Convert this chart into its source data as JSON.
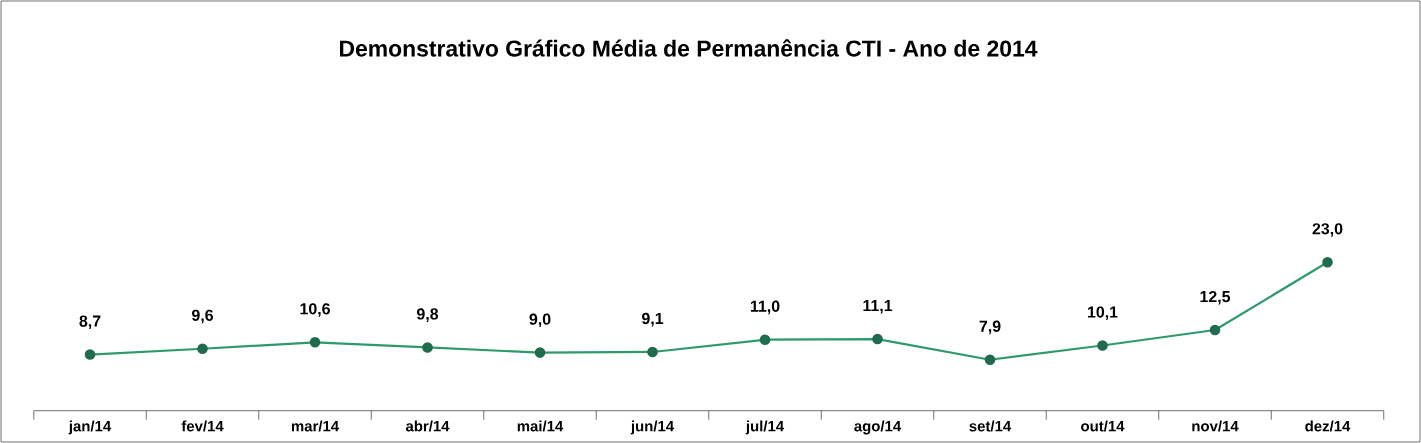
{
  "chart_data": {
    "type": "line",
    "title": "Demonstrativo Gráfico Média de Permanência CTI - Ano de 2014",
    "categories": [
      "jan/14",
      "fev/14",
      "mar/14",
      "abr/14",
      "mai/14",
      "jun/14",
      "jul/14",
      "ago/14",
      "set/14",
      "out/14",
      "nov/14",
      "dez/14"
    ],
    "series": [
      {
        "color": "#2e9a6c",
        "values": [
          8.7,
          9.6,
          10.6,
          9.8,
          9.0,
          9.1,
          11.0,
          11.1,
          7.9,
          10.1,
          12.5,
          23.0
        ],
        "value_labels": [
          "8,7",
          "9,6",
          "10,6",
          "9,8",
          "9,0",
          "9,1",
          "11,0",
          "11,1",
          "7,9",
          "10,1",
          "12,5",
          "23,0"
        ]
      }
    ],
    "marker": "circle",
    "line_style": "solid"
  }
}
